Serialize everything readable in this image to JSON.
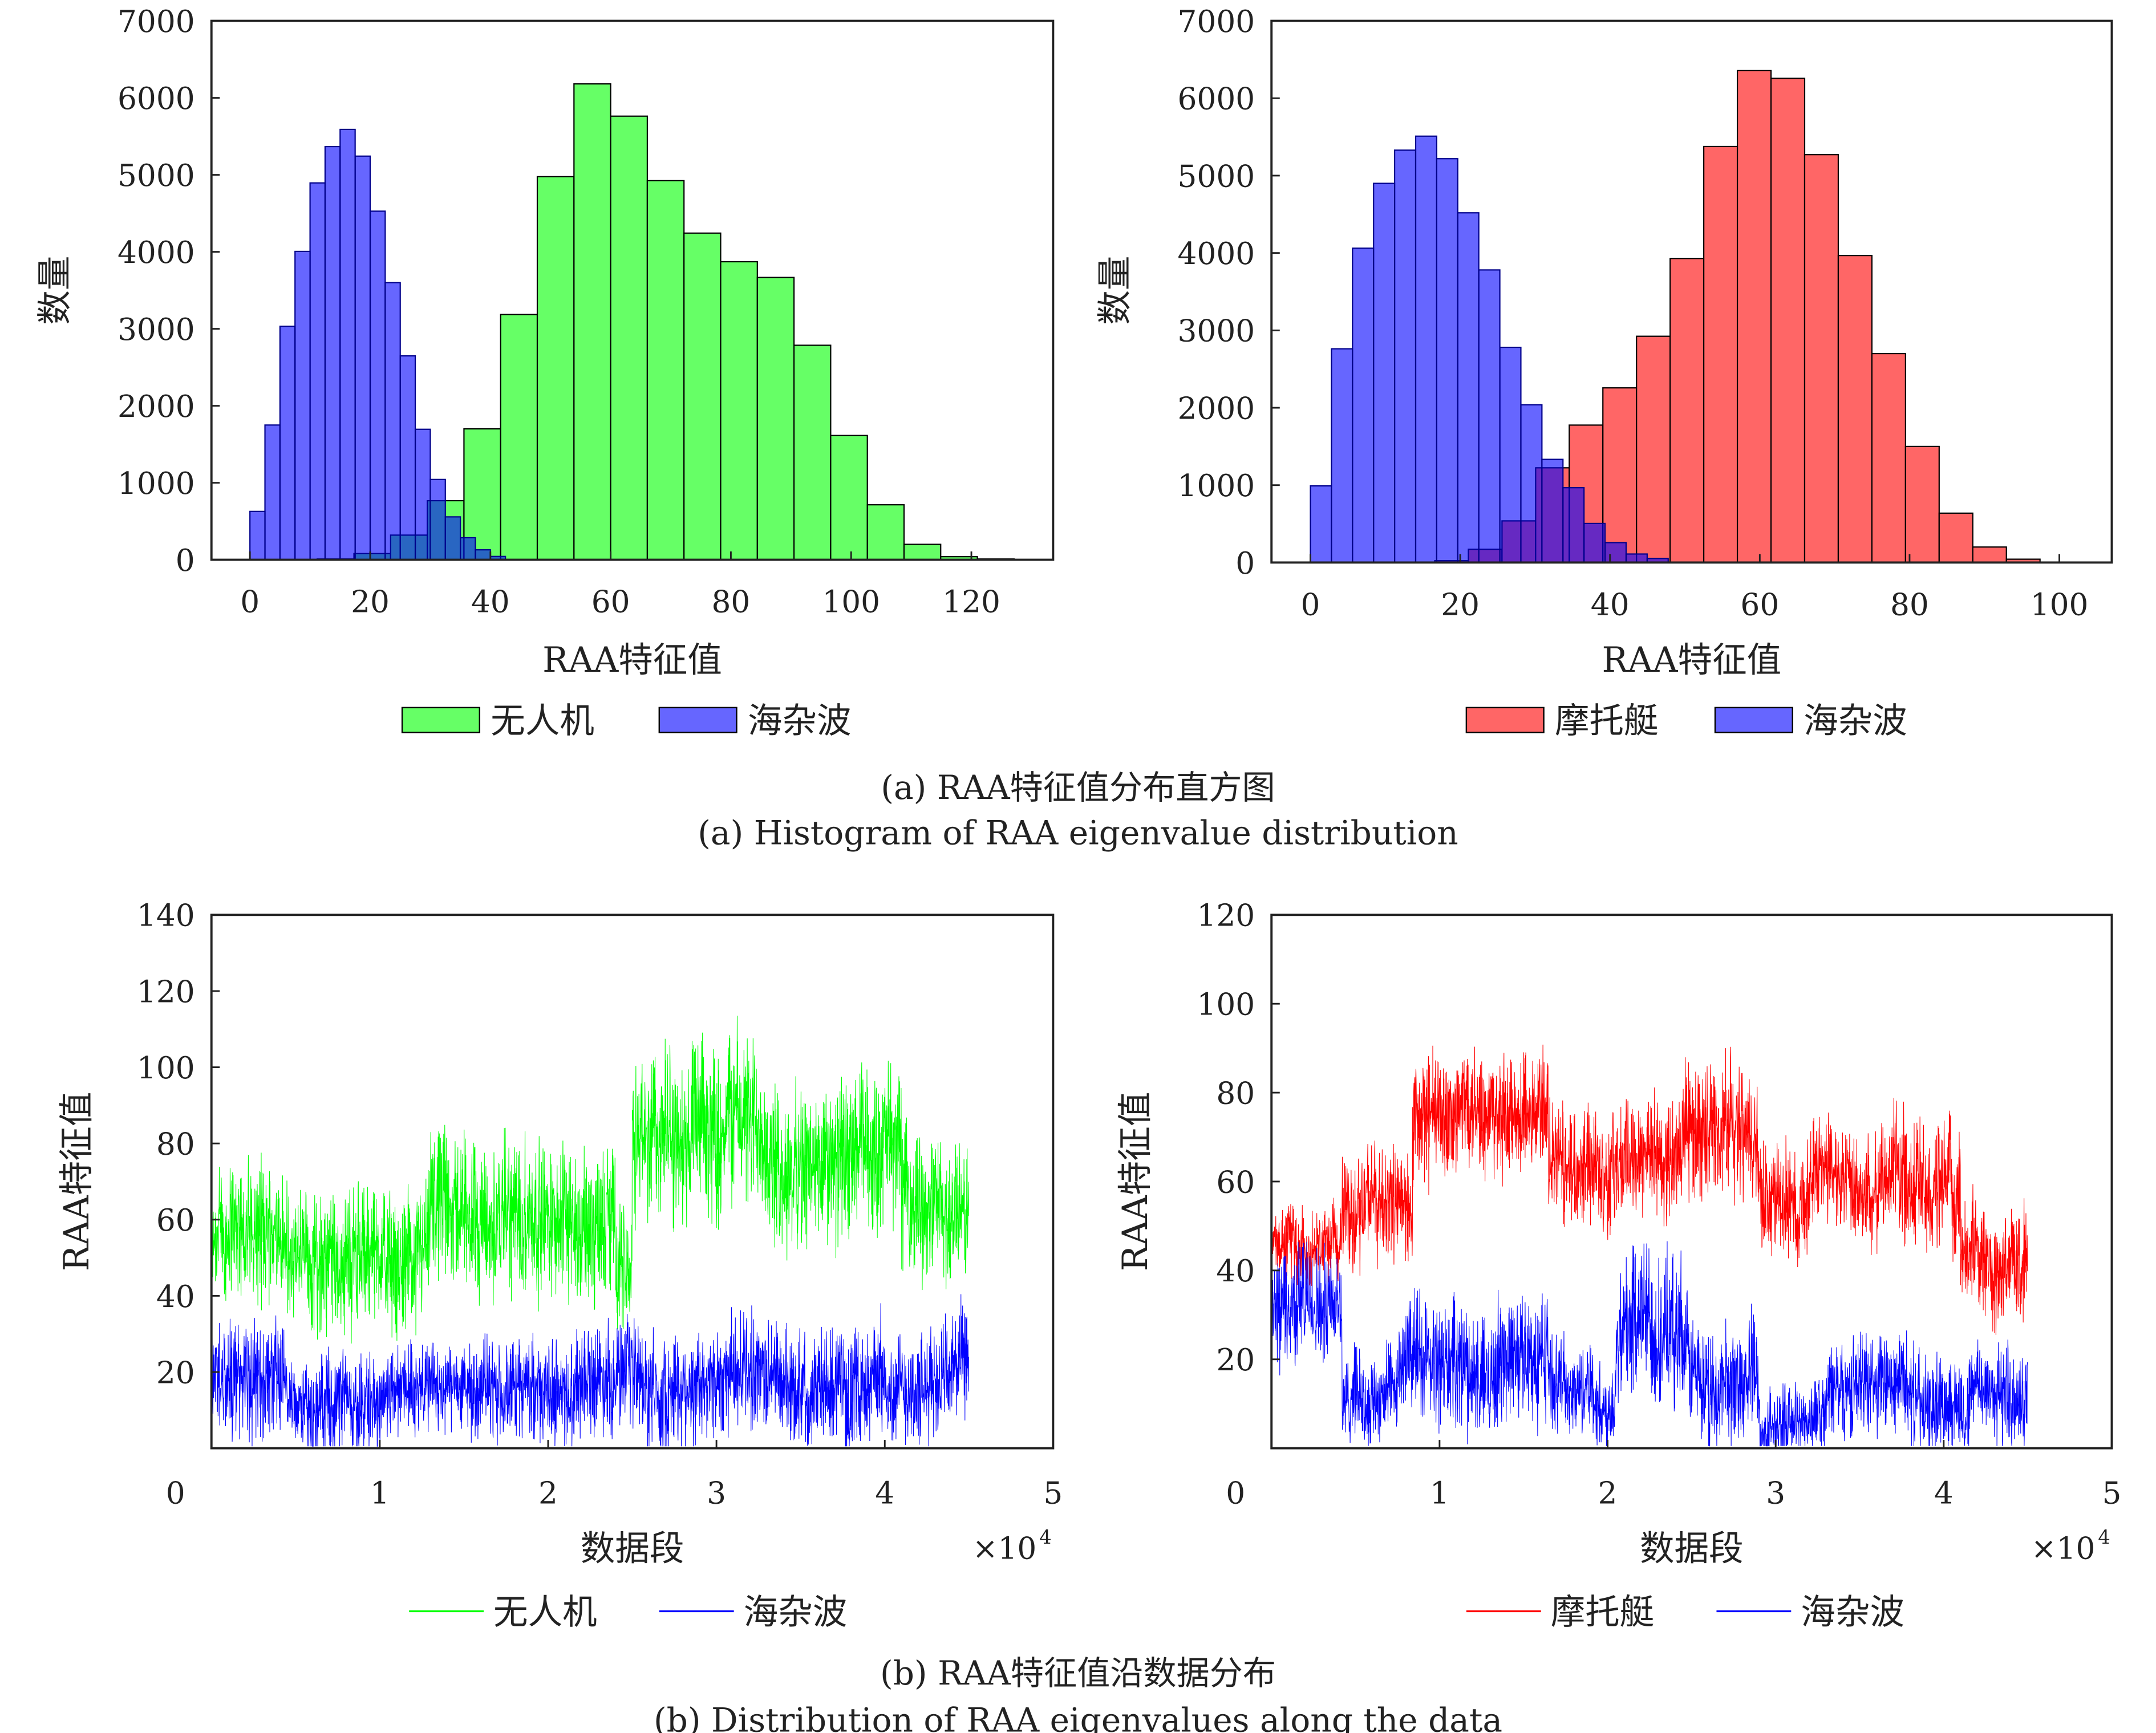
{
  "captions": {
    "a_cn": "(a) RAA特征值分布直方图",
    "a_en": "(a) Histogram of RAA eigenvalue distribution",
    "b_cn": "(b) RAA特征值沿数据分布",
    "b_en": "(b) Distribution of RAA eigenvalues along the data"
  },
  "colors": {
    "green_fill": "#66ff66",
    "blue_fill": "#6666ff",
    "red_fill": "#ff6666",
    "green_line": "#00ff00",
    "blue_line": "#0000ff",
    "red_line": "#ff0000"
  },
  "chart_data": [
    {
      "id": "hist-uav",
      "type": "bar",
      "xlabel": "RAA特征值",
      "ylabel": "数量",
      "xlim": [
        -6.4,
        133.6
      ],
      "ylim": [
        0,
        7000
      ],
      "xticks": [
        0,
        20,
        40,
        60,
        80,
        100,
        120
      ],
      "yticks": [
        0,
        1000,
        2000,
        3000,
        4000,
        5000,
        6000,
        7000
      ],
      "legend": [
        "无人机",
        "海杂波"
      ],
      "legend_placement": "bottom",
      "series": [
        {
          "name": "无人机",
          "color": "#66ff66",
          "bin_start": 11.2,
          "bin_width": 6.1,
          "values": [
            10,
            80,
            320,
            767,
            1700,
            3186,
            4976,
            6181,
            5762,
            4924,
            4243,
            3871,
            3667,
            2786,
            1614,
            714,
            200,
            40,
            10
          ]
        },
        {
          "name": "海杂波",
          "color": "#6666ff",
          "bin_start": 0,
          "bin_width": 2.5,
          "values": [
            628,
            1750,
            3033,
            4005,
            4895,
            5367,
            5590,
            5243,
            4528,
            3600,
            2648,
            1695,
            1043,
            557,
            286,
            129,
            43
          ]
        }
      ]
    },
    {
      "id": "hist-boat",
      "type": "bar",
      "xlabel": "RAA特征值",
      "ylabel": "数量",
      "xlim": [
        -5.2,
        107
      ],
      "ylim": [
        0,
        7000
      ],
      "xticks": [
        0,
        20,
        40,
        60,
        80,
        100
      ],
      "yticks": [
        0,
        1000,
        2000,
        3000,
        4000,
        5000,
        6000,
        7000
      ],
      "legend": [
        "摩托艇",
        "海杂波"
      ],
      "legend_placement": "bottom",
      "series": [
        {
          "name": "摩托艇",
          "color": "#ff6666",
          "bin_start": 16.6,
          "bin_width": 4.49,
          "values": [
            24,
            171,
            538,
            1224,
            1776,
            2257,
            2924,
            3929,
            5376,
            6357,
            6257,
            5271,
            3967,
            2700,
            1500,
            638,
            200,
            43,
            5
          ]
        },
        {
          "name": "海杂波",
          "color": "#6666ff",
          "bin_start": 0,
          "bin_width": 2.81,
          "values": [
            990,
            2762,
            4062,
            4900,
            5329,
            5510,
            5219,
            4519,
            3781,
            2781,
            2038,
            1333,
            967,
            505,
            257,
            110,
            52
          ]
        }
      ]
    },
    {
      "id": "series-uav",
      "type": "line",
      "xlabel": "数据段",
      "ylabel": "RAA特征值",
      "xlim": [
        0,
        50000
      ],
      "ylim": [
        0,
        140
      ],
      "xticks": [
        0,
        1,
        2,
        3,
        4,
        5
      ],
      "x_multiplier": "×10",
      "x_multiplier_exp": "4",
      "yticks": [
        20,
        40,
        60,
        80,
        100,
        120,
        140
      ],
      "legend": [
        "无人机",
        "海杂波"
      ],
      "legend_placement": "bottom",
      "series": [
        {
          "name": "无人机",
          "color": "#00ff00",
          "segments": [
            [
              0,
              4500,
              55,
              22
            ],
            [
              4500,
              10000,
              50,
              22
            ],
            [
              10000,
              13000,
              48,
              22
            ],
            [
              13000,
              24000,
              60,
              25
            ],
            [
              24000,
              25000,
              50,
              20
            ],
            [
              25000,
              33000,
              85,
              27
            ],
            [
              33000,
              41000,
              78,
              25
            ],
            [
              41000,
              45000,
              65,
              22
            ]
          ]
        },
        {
          "name": "海杂波",
          "color": "#0000ff",
          "segments": [
            [
              0,
              4500,
              20,
              18
            ],
            [
              4500,
              20000,
              15,
              15
            ],
            [
              20000,
              25000,
              16,
              17
            ],
            [
              25000,
              45000,
              18,
              18
            ]
          ]
        }
      ]
    },
    {
      "id": "series-boat",
      "type": "line",
      "xlabel": "数据段",
      "ylabel": "RAA特征值",
      "xlim": [
        0,
        50000
      ],
      "ylim": [
        0,
        120
      ],
      "xticks": [
        0,
        1,
        2,
        3,
        4,
        5
      ],
      "x_multiplier": "×10",
      "x_multiplier_exp": "4",
      "yticks": [
        20,
        40,
        60,
        80,
        100,
        120
      ],
      "legend": [
        "摩托艇",
        "海杂波"
      ],
      "legend_placement": "bottom",
      "series": [
        {
          "name": "摩托艇",
          "color": "#ff0000",
          "segments": [
            [
              0,
              4200,
              45,
              10
            ],
            [
              4200,
              8400,
              55,
              15
            ],
            [
              8400,
              16500,
              75,
              18
            ],
            [
              16500,
              24500,
              64,
              16
            ],
            [
              24500,
              29000,
              70,
              18
            ],
            [
              29000,
              37000,
              60,
              15
            ],
            [
              37000,
              41000,
              60,
              18
            ],
            [
              41000,
              45000,
              45,
              15
            ]
          ]
        },
        {
          "name": "海杂波",
          "color": "#0000ff",
          "segments": [
            [
              0,
              4200,
              34,
              16
            ],
            [
              4200,
              8000,
              12,
              12
            ],
            [
              8000,
              16500,
              18,
              17
            ],
            [
              16500,
              20500,
              12,
              12
            ],
            [
              20500,
              24500,
              26,
              20
            ],
            [
              24500,
              29000,
              18,
              16
            ],
            [
              29000,
              33000,
              9,
              10
            ],
            [
              33000,
              45000,
              12,
              13
            ]
          ]
        }
      ]
    }
  ]
}
